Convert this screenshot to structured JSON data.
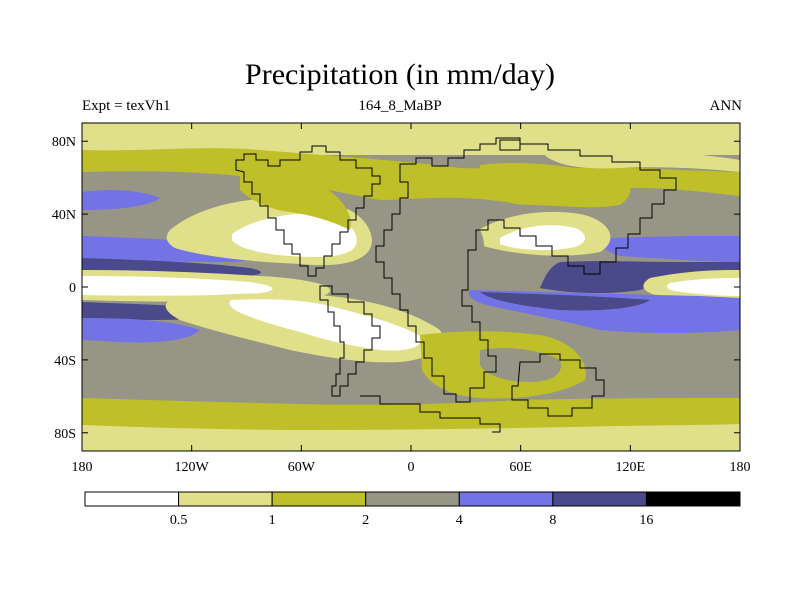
{
  "title": "Precipitation (in mm/day)",
  "subtitle_left": "Expt = texVh1",
  "subtitle_center": "164_8_MaBP",
  "subtitle_right": "ANN",
  "lon_ticks": [
    {
      "value": -180,
      "label": "180"
    },
    {
      "value": -120,
      "label": "120W"
    },
    {
      "value": -60,
      "label": "60W"
    },
    {
      "value": 0,
      "label": "0"
    },
    {
      "value": 60,
      "label": "60E"
    },
    {
      "value": 120,
      "label": "120E"
    },
    {
      "value": 180,
      "label": "180"
    }
  ],
  "lat_ticks": [
    {
      "value": 80,
      "label": "80N"
    },
    {
      "value": 40,
      "label": "40N"
    },
    {
      "value": 0,
      "label": "0"
    },
    {
      "value": -40,
      "label": "40S"
    },
    {
      "value": -80,
      "label": "80S"
    }
  ],
  "colorbar": {
    "colors": [
      "#ffffff",
      "#e1e08a",
      "#bfbf2a",
      "#979686",
      "#7373e6",
      "#4a4a8a",
      "#000000"
    ],
    "labels": [
      "0.5",
      "1",
      "2",
      "4",
      "8",
      "16"
    ]
  },
  "colors": {
    "gray": "#979686",
    "olive": "#bfbf2a",
    "lightyellow": "#e1e08a",
    "blue": "#7373e6",
    "darkblue": "#4a4a8a",
    "white": "#ffffff"
  }
}
